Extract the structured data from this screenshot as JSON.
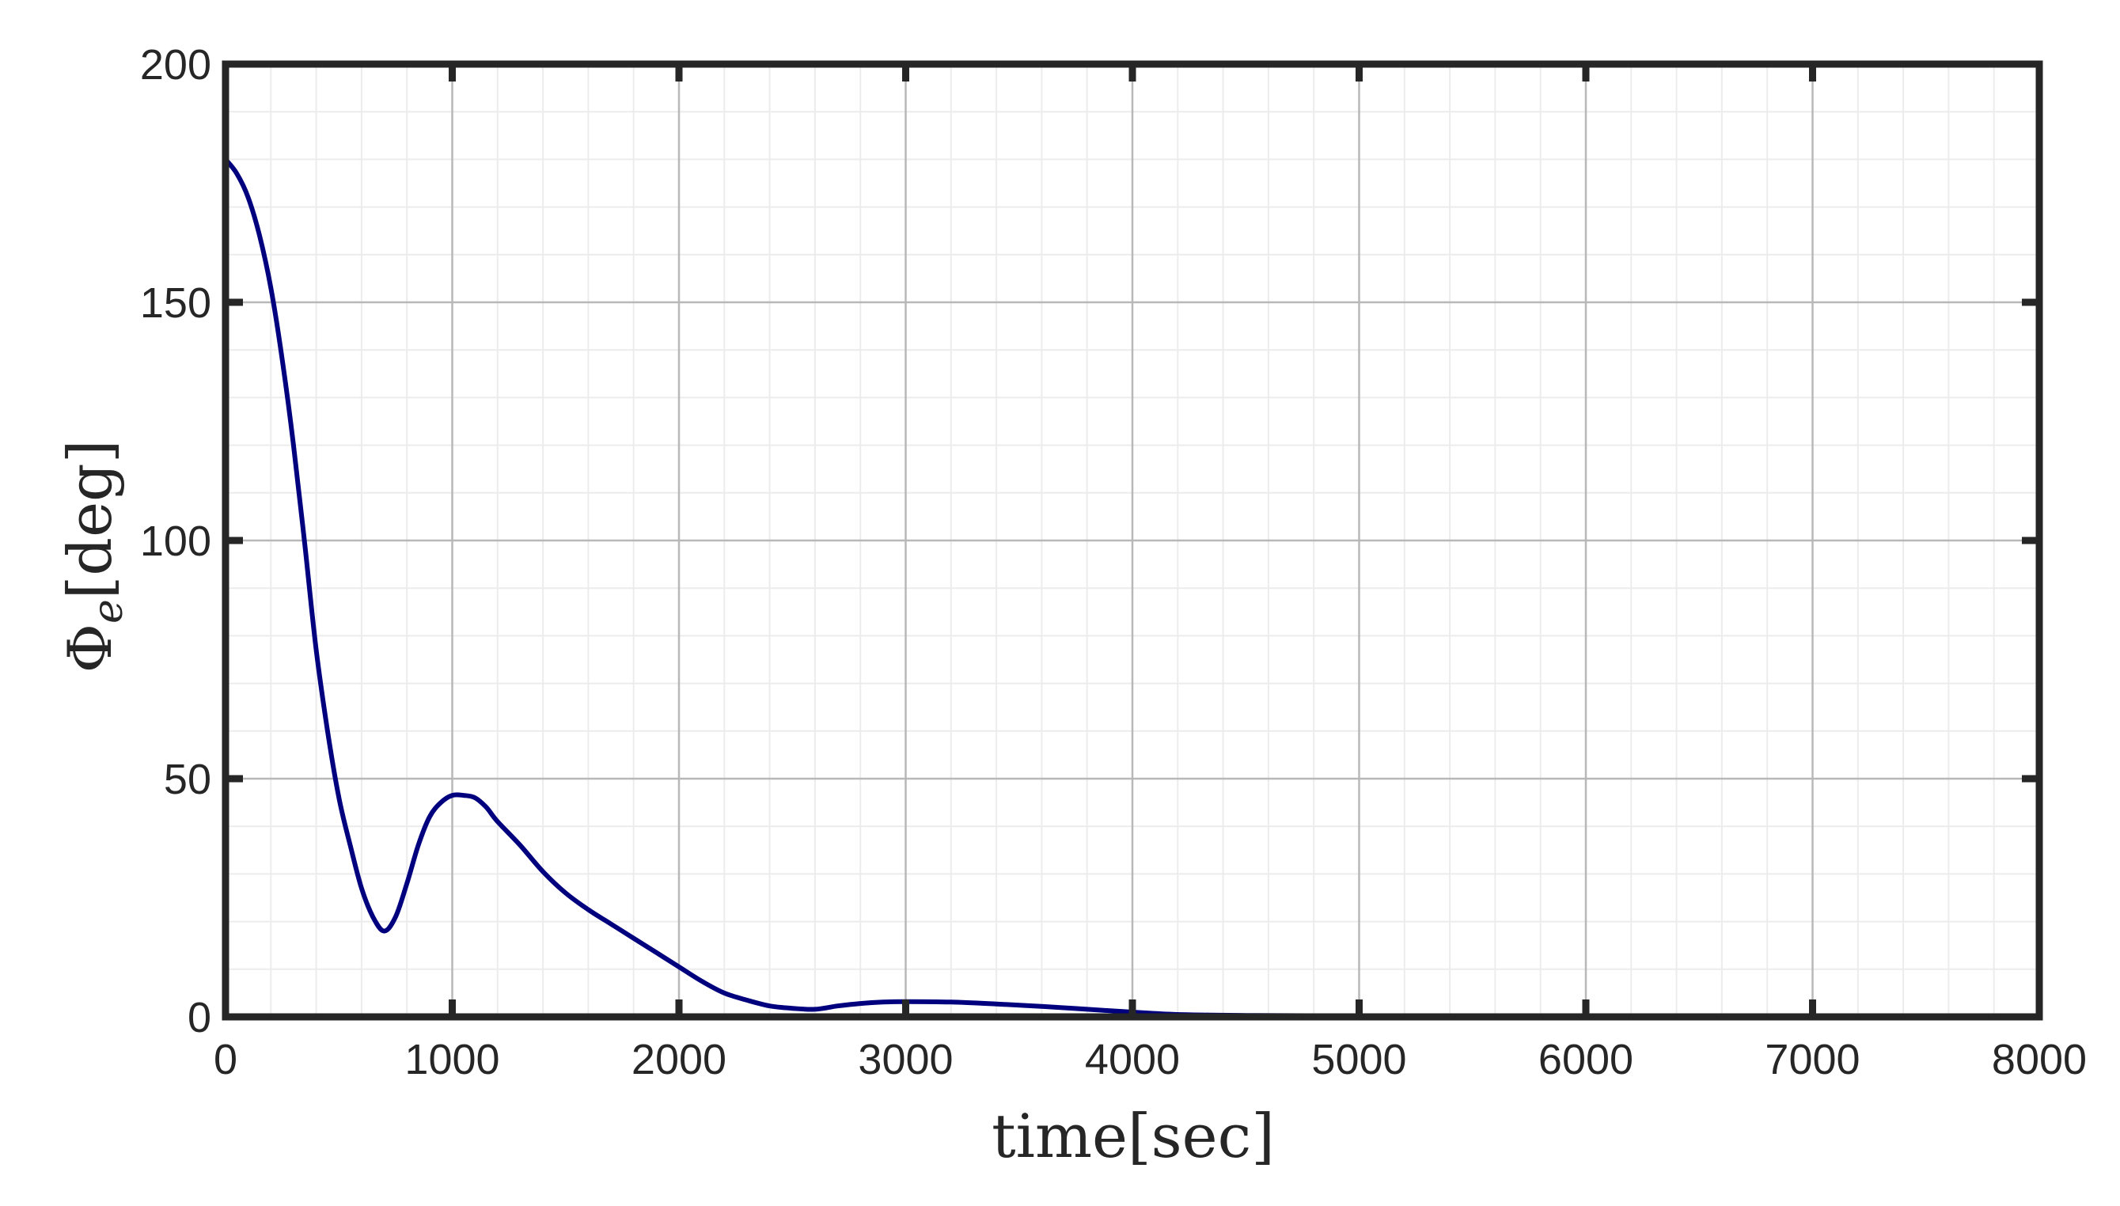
{
  "chart_data": {
    "type": "line",
    "xlabel": "time[sec]",
    "ylabel_main": "Φ",
    "ylabel_sub": "e",
    "ylabel_unit": "[deg]",
    "xlim": [
      0,
      8000
    ],
    "ylim": [
      0,
      200
    ],
    "xticks": [
      "0",
      "1000",
      "2000",
      "3000",
      "4000",
      "5000",
      "6000",
      "7000",
      "8000"
    ],
    "yticks": [
      "0",
      "50",
      "100",
      "150",
      "200"
    ],
    "grid": true,
    "minor_grid": true,
    "line_color": "#00007f",
    "series": [
      {
        "x": [
          0,
          50,
          100,
          150,
          200,
          250,
          300,
          350,
          400,
          450,
          500,
          550,
          600,
          650,
          700,
          750,
          800,
          850,
          900,
          950,
          1000,
          1050,
          1100,
          1150,
          1200,
          1300,
          1400,
          1500,
          1600,
          1700,
          1800,
          1900,
          2000,
          2100,
          2200,
          2300,
          2400,
          2500,
          2600,
          2700,
          2800,
          2900,
          3000,
          3200,
          3400,
          3600,
          3800,
          4000,
          4200,
          4500,
          5000,
          6000,
          7000,
          8000
        ],
        "y": [
          180,
          177,
          172,
          164,
          153,
          138,
          120,
          99,
          77,
          60,
          46,
          36,
          27,
          21,
          18,
          21,
          28,
          36,
          42,
          45,
          46.5,
          46.5,
          46,
          44,
          41,
          36,
          30.5,
          26,
          22.5,
          19.5,
          16.5,
          13.5,
          10.5,
          7.5,
          5,
          3.5,
          2.3,
          1.8,
          1.6,
          2.3,
          2.8,
          3.1,
          3.2,
          3.1,
          2.7,
          2.2,
          1.6,
          1.0,
          0.5,
          0.3,
          0.2,
          0.1,
          0.1,
          0.1
        ]
      }
    ]
  }
}
